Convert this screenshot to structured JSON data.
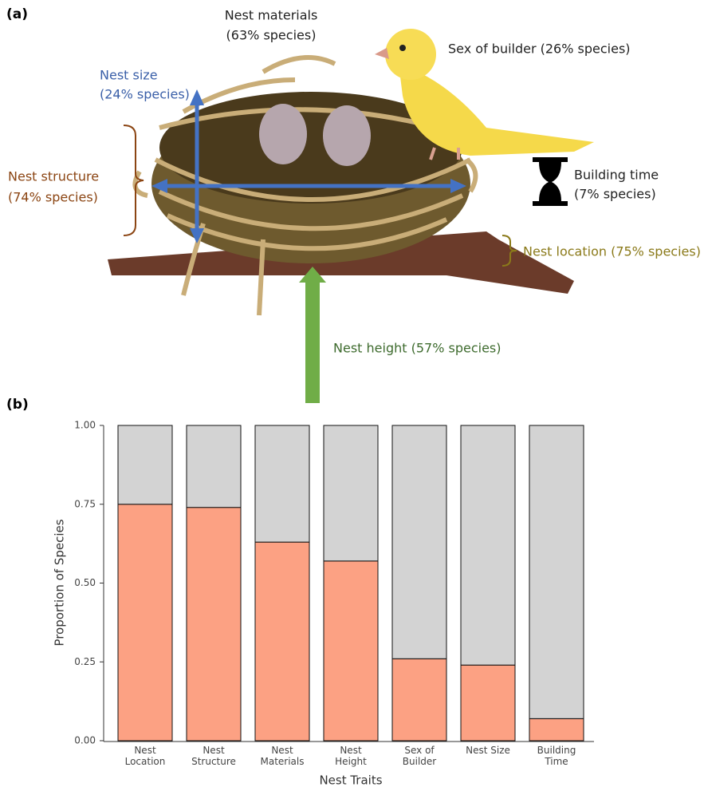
{
  "panel_labels": [
    "(a)",
    "(b)"
  ],
  "diagram": {
    "labels": [
      {
        "lines": [
          "Nest materials",
          "(63% species)"
        ]
      },
      {
        "lines": [
          "Sex of builder (26% species)"
        ]
      },
      {
        "lines": [
          "Nest size",
          "(24% species)"
        ]
      },
      {
        "lines": [
          "Nest structure",
          "(74% species)"
        ]
      },
      {
        "lines": [
          "Building time",
          "(7% species)"
        ]
      },
      {
        "lines": [
          "Nest location (75% species)"
        ]
      },
      {
        "lines": [
          "Nest height (57% species)"
        ]
      }
    ]
  },
  "chart_data": {
    "type": "stacked_bar",
    "categories": [
      "Nest Location",
      "Nest Structure",
      "Nest Materials",
      "Nest Height",
      "Sex of Builder",
      "Nest Size",
      "Building Time"
    ],
    "series": [
      {
        "color": "#fca183",
        "values": [
          0.75,
          0.74,
          0.63,
          0.57,
          0.26,
          0.24,
          0.07
        ]
      },
      {
        "color": "#d3d3d3",
        "values": [
          0.25,
          0.26,
          0.37,
          0.43,
          0.74,
          0.76,
          0.93
        ]
      }
    ],
    "x_label": "Nest Traits",
    "y_label": "Proportion of Species",
    "ylim": [
      0,
      1
    ],
    "yticks": [
      {
        "value": 0,
        "label": "0.00"
      },
      0.25,
      {
        "value": 0.5,
        "label": "0.50"
      },
      0.75,
      {
        "value": 1,
        "label": "1.00"
      }
    ]
  }
}
